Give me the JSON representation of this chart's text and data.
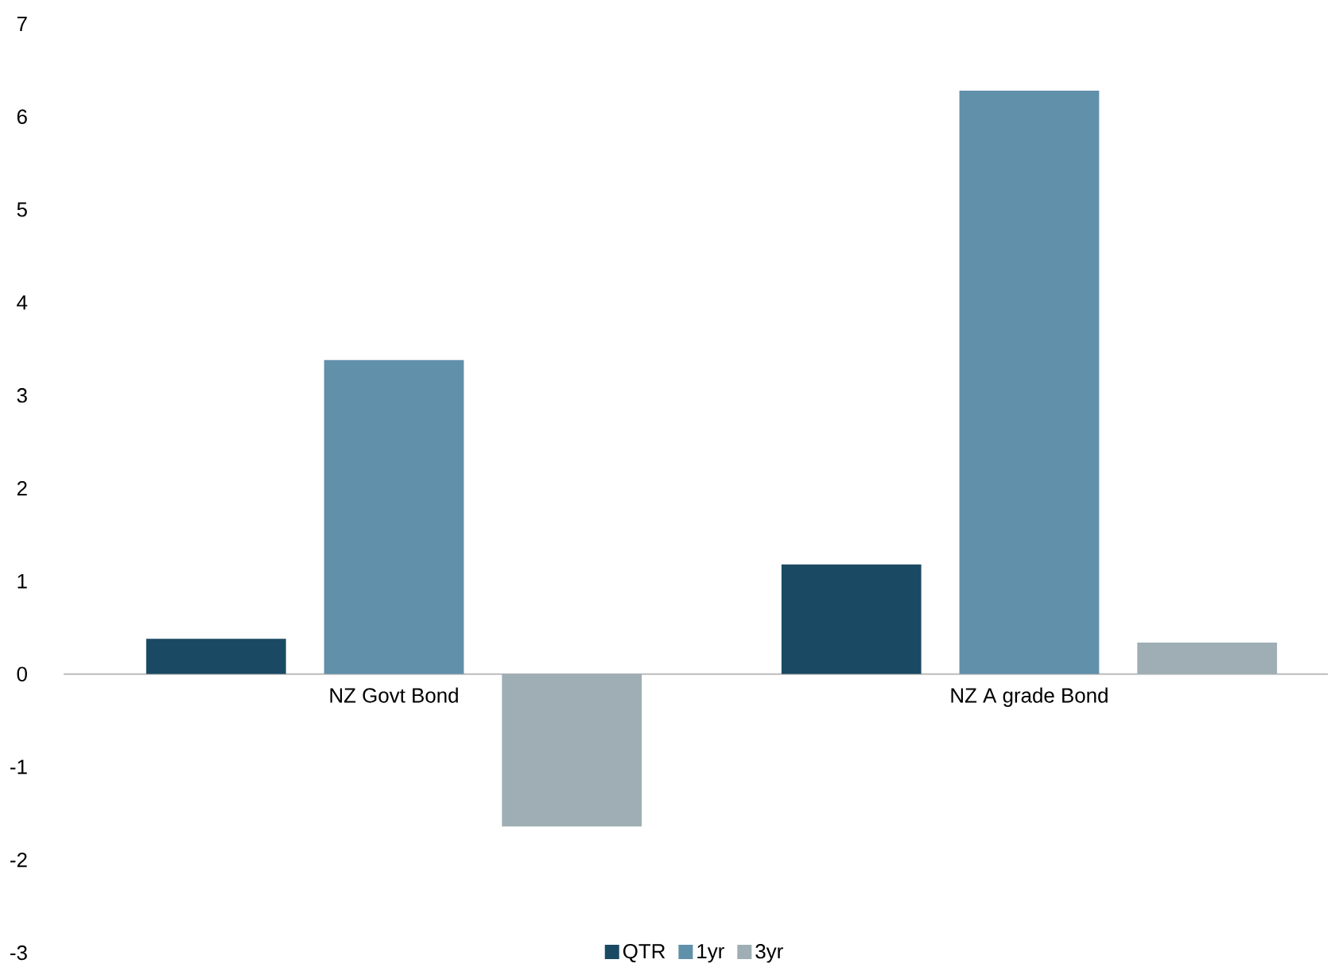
{
  "chart_data": {
    "type": "bar",
    "categories": [
      "NZ Govt Bond",
      "NZ A grade Bond"
    ],
    "series": [
      {
        "name": "QTR",
        "color": "#1a4a63",
        "values": [
          0.38,
          1.18
        ]
      },
      {
        "name": "1yr",
        "color": "#6190aa",
        "values": [
          3.38,
          6.28
        ]
      },
      {
        "name": "3yr",
        "color": "#9eaeb4",
        "values": [
          -1.64,
          0.34
        ]
      }
    ],
    "ylim": [
      -3,
      7
    ],
    "yticks": [
      -3,
      -2,
      -1,
      0,
      1,
      2,
      3,
      4,
      5,
      6,
      7
    ],
    "legend": "bottom",
    "grid": false
  }
}
